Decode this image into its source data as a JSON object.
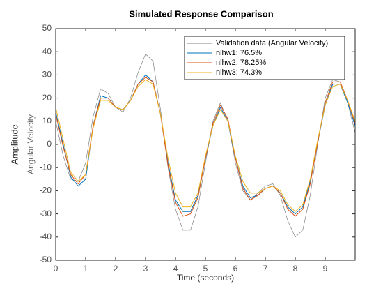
{
  "chart_data": {
    "type": "line",
    "title": "Simulated Response Comparison",
    "xlabel": "Time (seconds)",
    "ylabel": "Amplitude",
    "ylabel2": "Angular Velocity",
    "xlim": [
      0,
      10
    ],
    "ylim": [
      -50,
      50
    ],
    "xticks": [
      0,
      1,
      2,
      3,
      4,
      5,
      6,
      7,
      8,
      9
    ],
    "yticks": [
      -50,
      -40,
      -30,
      -20,
      -10,
      0,
      10,
      20,
      30,
      40,
      50
    ],
    "grid": false,
    "legend": "northeast",
    "x": [
      0,
      0.25,
      0.5,
      0.75,
      1,
      1.25,
      1.5,
      1.75,
      2,
      2.25,
      2.5,
      2.75,
      3,
      3.25,
      3.5,
      3.75,
      4,
      4.25,
      4.5,
      4.75,
      5,
      5.25,
      5.5,
      5.75,
      6,
      6.25,
      6.5,
      6.75,
      7,
      7.25,
      7.5,
      7.75,
      8,
      8.25,
      8.5,
      8.75,
      9,
      9.25,
      9.5,
      9.75,
      10
    ],
    "series": [
      {
        "name": "Validation data (Angular Velocity)",
        "color": "#808080",
        "values": [
          10,
          -5,
          -15,
          -16,
          -8,
          12,
          24,
          22,
          16,
          14,
          20,
          31,
          39,
          36,
          15,
          -10,
          -28,
          -37,
          -37,
          -27,
          -8,
          10,
          18,
          10,
          -8,
          -20,
          -24,
          -21,
          -18,
          -17,
          -22,
          -33,
          -40,
          -37,
          -22,
          0,
          20,
          28,
          27,
          18,
          5
        ]
      },
      {
        "name": "nlhw1: 76.5%",
        "color": "#0072bd",
        "values": [
          14,
          0,
          -14,
          -18,
          -15,
          8,
          21,
          20,
          16,
          15,
          19,
          26,
          30,
          27,
          13,
          -8,
          -24,
          -29,
          -29,
          -22,
          -6,
          8,
          16,
          10,
          -6,
          -18,
          -23,
          -22,
          -19,
          -18,
          -21,
          -27,
          -30,
          -27,
          -16,
          1,
          17,
          26,
          26,
          18,
          8
        ]
      },
      {
        "name": "nlhw2: 78.25%",
        "color": "#d95319",
        "values": [
          13,
          -1,
          -13,
          -17,
          -13,
          8,
          20,
          20,
          16,
          15,
          19,
          26,
          29,
          27,
          13,
          -9,
          -25,
          -31,
          -30,
          -23,
          -6,
          9,
          17,
          11,
          -6,
          -19,
          -24,
          -22,
          -19,
          -18,
          -21,
          -28,
          -31,
          -28,
          -17,
          1,
          18,
          27,
          27,
          19,
          9
        ]
      },
      {
        "name": "nlhw3: 74.3%",
        "color": "#edb120",
        "values": [
          16,
          2,
          -12,
          -16,
          -13,
          7,
          19,
          19,
          16,
          15,
          19,
          25,
          28,
          26,
          13,
          -6,
          -21,
          -27,
          -27,
          -21,
          -5,
          8,
          15,
          10,
          -5,
          -16,
          -21,
          -21,
          -19,
          -18,
          -20,
          -26,
          -29,
          -26,
          -15,
          2,
          17,
          25,
          26,
          19,
          10
        ]
      }
    ]
  }
}
